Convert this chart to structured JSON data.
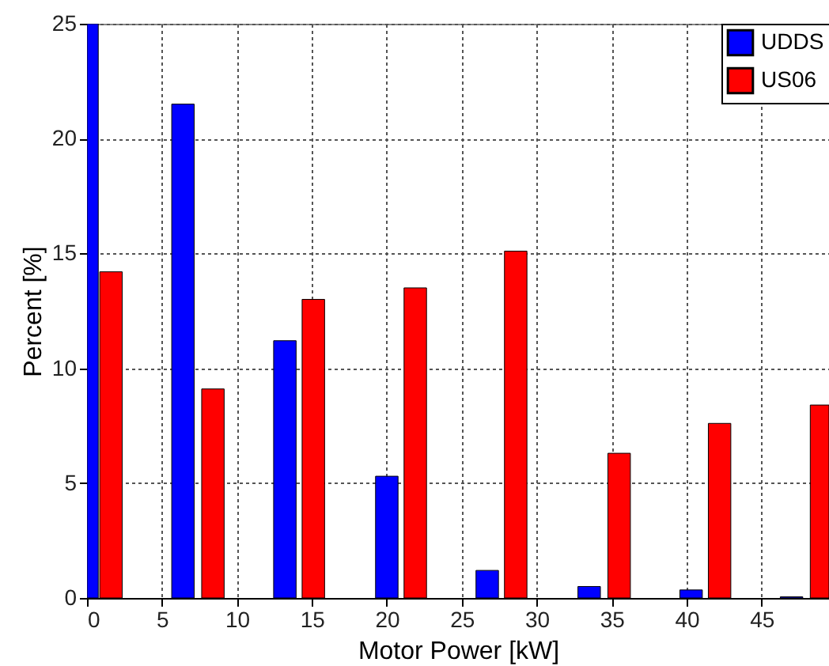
{
  "chart_data": {
    "type": "bar",
    "xlabel": "Motor Power [kW]",
    "ylabel": "Percent [%]",
    "xlim": [
      0,
      49.5
    ],
    "xticks": [
      0,
      5,
      10,
      15,
      20,
      25,
      30,
      35,
      40,
      45
    ],
    "ylim": [
      0,
      25
    ],
    "yticks": [
      0,
      5,
      10,
      15,
      20,
      25
    ],
    "grid": true,
    "legend": "top right",
    "series": [
      {
        "name": "UDDS",
        "color": "#0000ff",
        "x": [
          0,
          6.4,
          13.2,
          20.0,
          26.7,
          33.5,
          40.3,
          47.0
        ],
        "values": [
          25,
          21.5,
          11.2,
          5.3,
          1.2,
          0.5,
          0.35,
          0.05
        ]
      },
      {
        "name": "US06",
        "color": "#ff0000",
        "x": [
          1.6,
          8.4,
          15.1,
          21.9,
          28.6,
          35.5,
          42.2,
          49.0
        ],
        "values": [
          14.2,
          9.1,
          13.0,
          13.5,
          15.1,
          6.3,
          7.6,
          8.4
        ]
      }
    ]
  }
}
